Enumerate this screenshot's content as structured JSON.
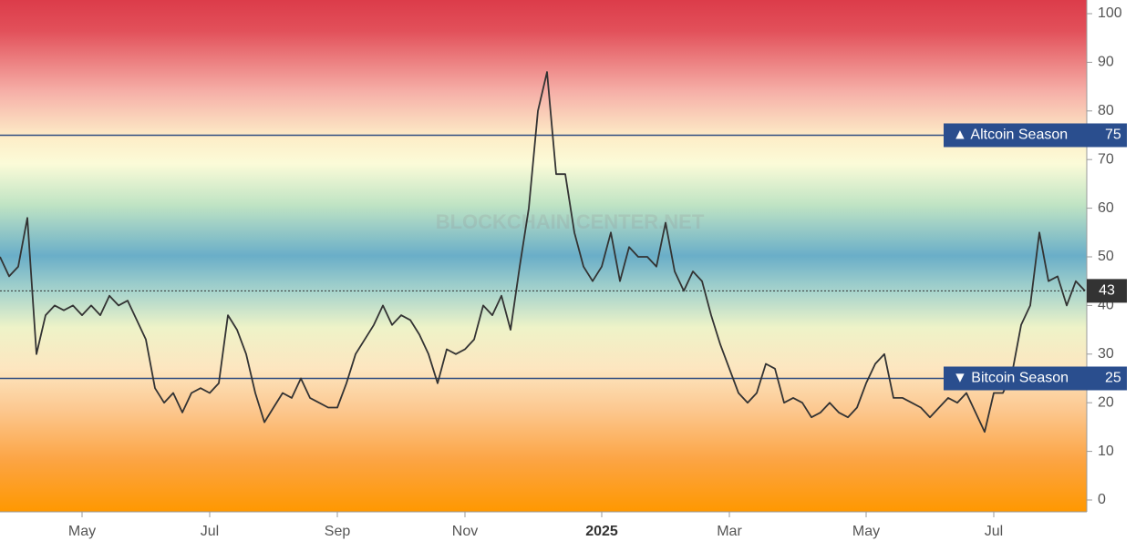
{
  "chart_data": {
    "type": "line",
    "watermark": "BLOCKCHAIN CENTER.NET",
    "values": [
      50,
      46,
      48,
      58,
      30,
      38,
      40,
      39,
      40,
      38,
      40,
      38,
      42,
      40,
      41,
      37,
      33,
      23,
      20,
      22,
      18,
      22,
      23,
      22,
      24,
      38,
      35,
      30,
      22,
      16,
      19,
      22,
      21,
      25,
      21,
      20,
      19,
      19,
      24,
      30,
      33,
      36,
      40,
      36,
      38,
      37,
      34,
      30,
      24,
      31,
      30,
      31,
      33,
      40,
      38,
      42,
      35,
      48,
      60,
      80,
      88,
      67,
      67,
      55,
      48,
      45,
      48,
      55,
      45,
      52,
      50,
      50,
      48,
      57,
      47,
      43,
      47,
      45,
      38,
      32,
      27,
      22,
      20,
      22,
      28,
      27,
      20,
      21,
      20,
      17,
      18,
      20,
      18,
      17,
      19,
      24,
      28,
      30,
      21,
      21,
      20,
      19,
      17,
      19,
      21,
      20,
      22,
      18,
      14,
      22,
      22,
      26,
      36,
      40,
      55,
      45,
      46,
      40,
      45,
      43
    ],
    "color": "#333333",
    "xticks": [
      {
        "value": 9,
        "label": "May"
      },
      {
        "value": 23,
        "label": "Jul"
      },
      {
        "value": 37,
        "label": "Sep"
      },
      {
        "value": 51,
        "label": "Nov"
      },
      {
        "value": 66,
        "label": "2025"
      },
      {
        "value": 80,
        "label": "Mar"
      },
      {
        "value": 95,
        "label": "May"
      },
      {
        "value": 109,
        "label": "Jul"
      }
    ],
    "ylim": [
      0,
      100
    ],
    "yticks": [
      0,
      10,
      20,
      30,
      40,
      50,
      60,
      70,
      80,
      90,
      100
    ],
    "reference_lines": [
      {
        "label": "▲ Altcoin Season",
        "value": 75
      },
      {
        "label": "▼ Bitcoin Season",
        "value": 25
      }
    ]
  }
}
